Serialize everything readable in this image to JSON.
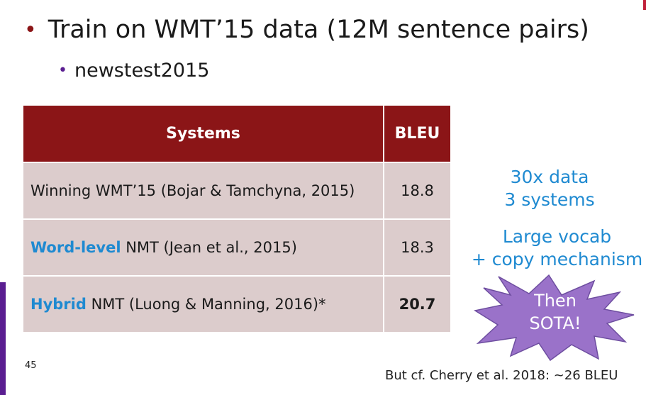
{
  "bullets": {
    "main": "Train on WMT’15 data (12M sentence pairs)",
    "sub": "newstest2015"
  },
  "table": {
    "headers": {
      "systems": "Systems",
      "bleu": "BLEU"
    },
    "rows": [
      {
        "keyword": "",
        "system": "Winning WMT’15 (Bojar & Tamchyna, 2015)",
        "bleu": "18.8"
      },
      {
        "keyword": "Word-level",
        "system": " NMT (Jean et al., 2015)",
        "bleu": "18.3"
      },
      {
        "keyword": "Hybrid",
        "system": " NMT (Luong & Manning, 2016)*",
        "bleu": "20.7"
      }
    ]
  },
  "annotations": {
    "first_line1": "30x data",
    "first_line2": "3 systems",
    "second_line1": "Large vocab",
    "second_line2": "+ copy mechanism"
  },
  "starburst": {
    "line1": "Then",
    "line2": "SOTA!",
    "fill": "#9a72c9",
    "stroke": "#6e4ea0"
  },
  "colors": {
    "header": "#8b1517",
    "row": "#dccccc",
    "accent": "#1f8ad1",
    "sidebar": "#5a1e91"
  },
  "page_number": "45",
  "footnote": "But cf. Cherry et al. 2018: ~26 BLEU"
}
